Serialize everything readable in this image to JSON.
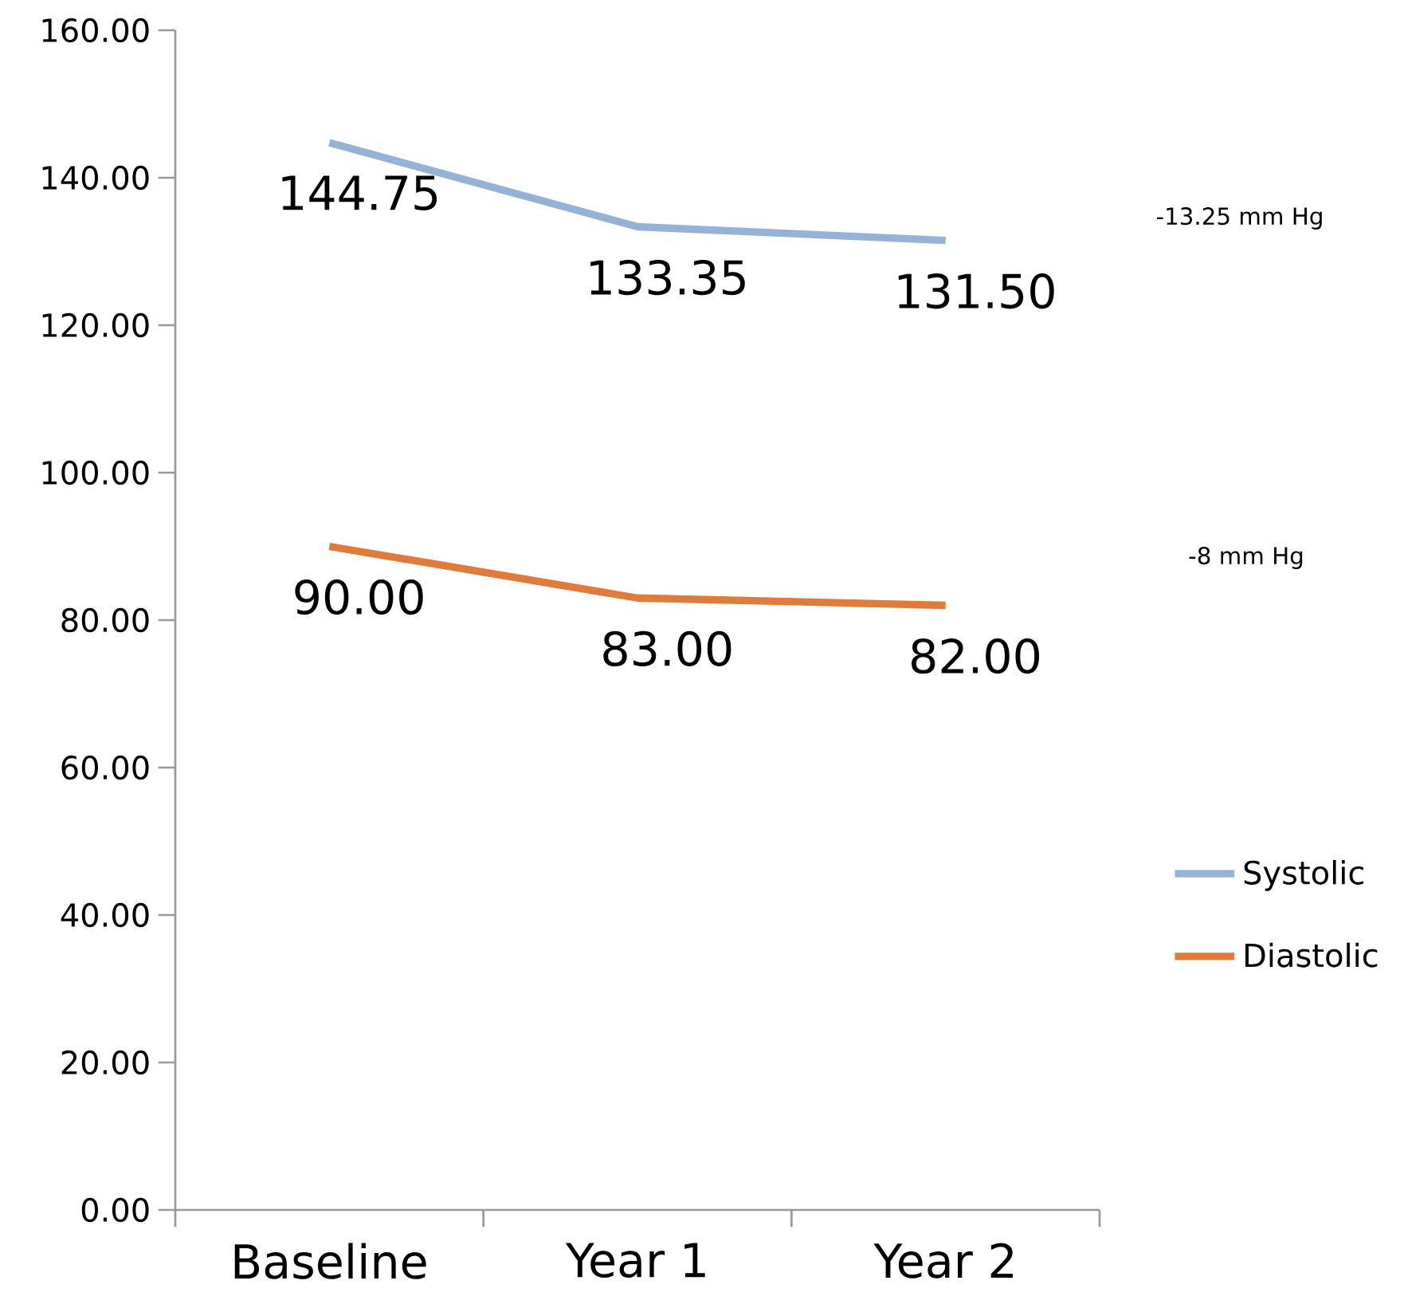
{
  "chart_data": {
    "type": "line",
    "categories": [
      "Baseline",
      "Year 1",
      "Year 2"
    ],
    "series": [
      {
        "name": "Systolic",
        "color": "#95b3d7",
        "values": [
          144.75,
          133.35,
          131.5
        ],
        "value_labels": [
          "144.75",
          "133.35",
          "131.50"
        ]
      },
      {
        "name": "Diastolic",
        "color": "#e07b3c",
        "values": [
          90,
          83,
          82
        ],
        "value_labels": [
          "90.00",
          "83.00",
          "82.00"
        ]
      }
    ],
    "ylim": [
      0,
      160
    ],
    "yticks": [
      {
        "value": 0,
        "label": "0.00"
      },
      {
        "value": 20,
        "label": "20.00"
      },
      {
        "value": 40,
        "label": "40.00"
      },
      {
        "value": 60,
        "label": "60.00"
      },
      {
        "value": 80,
        "label": "80.00"
      },
      {
        "value": 100,
        "label": "100.00"
      },
      {
        "value": 120,
        "label": "120.00"
      },
      {
        "value": 140,
        "label": "140.00"
      },
      {
        "value": 160,
        "label": "160.00"
      }
    ],
    "annotations": [
      "-13.25 mm Hg",
      "-8 mm Hg"
    ],
    "legend": "right",
    "grid": false,
    "marker": "none",
    "line_style": "solid"
  }
}
